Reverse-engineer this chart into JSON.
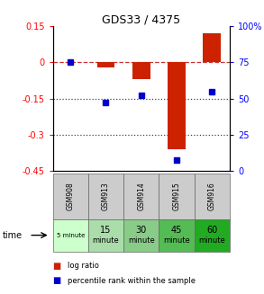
{
  "title": "GDS33 / 4375",
  "samples": [
    "GSM908",
    "GSM913",
    "GSM914",
    "GSM915",
    "GSM916"
  ],
  "time_labels_top": [
    "5 minute",
    "15",
    "30",
    "45",
    "60"
  ],
  "time_labels_bot": [
    "",
    "minute",
    "minute",
    "minute",
    "minute"
  ],
  "time_colors": [
    "#ccffcc",
    "#aaddaa",
    "#88cc88",
    "#55bb55",
    "#22aa22"
  ],
  "log_ratio": [
    0.0,
    -0.02,
    -0.07,
    -0.36,
    0.12
  ],
  "percentile_rank": [
    75.0,
    47.0,
    52.0,
    7.0,
    55.0
  ],
  "bar_color": "#cc2200",
  "dot_color": "#0000cc",
  "ylim_left": [
    -0.45,
    0.15
  ],
  "ylim_right": [
    0,
    100
  ],
  "yticks_left": [
    0.15,
    0.0,
    -0.15,
    -0.3,
    -0.45
  ],
  "ytick_left_labels": [
    "0.15",
    "0",
    "-0.15",
    "-0.3",
    "-0.45"
  ],
  "yticks_right": [
    100,
    75,
    50,
    25,
    0
  ],
  "ytick_right_labels": [
    "100%",
    "75",
    "50",
    "25",
    "0"
  ],
  "hline_y": [
    0.0,
    -0.15,
    -0.3
  ],
  "hline_ls": [
    "--",
    ":",
    ":"
  ],
  "hline_colors": [
    "#cc3333",
    "#444444",
    "#444444"
  ],
  "bar_width": 0.5,
  "sample_row_color": "#cccccc",
  "legend_red_label": "log ratio",
  "legend_blue_label": "percentile rank within the sample"
}
